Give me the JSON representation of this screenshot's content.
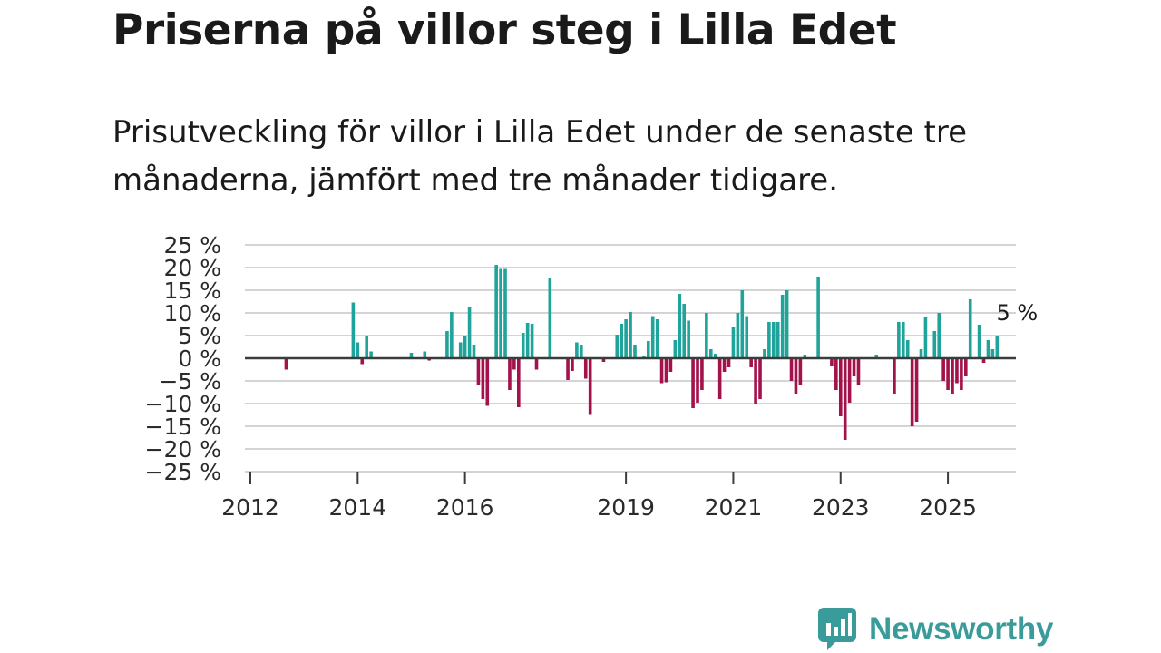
{
  "title": "Priserna på villor steg i Lilla Edet",
  "subtitle": "Prisutveckling för villor i Lilla Edet under de senaste tre månaderna, jämfört med tre månader tidigare.",
  "brand": {
    "name": "Newsworthy"
  },
  "colors": {
    "positive": "#1fa39a",
    "negative": "#a3124a",
    "grid": "#d4d4d4",
    "zero": "#3c3c3c",
    "brand": "#3a9c9a"
  },
  "chart_data": {
    "type": "bar",
    "ylim": [
      -25,
      25
    ],
    "yticks": [
      -25,
      -20,
      -15,
      -10,
      -5,
      0,
      5,
      10,
      15,
      20,
      25
    ],
    "ytick_labels": [
      "−25 %",
      "−20 %",
      "−15 %",
      "−10 %",
      "−5 %",
      "0 %",
      "5 %",
      "10 %",
      "15 %",
      "20 %",
      "25 %"
    ],
    "xticks": [
      2012,
      2014,
      2016,
      2019,
      2021,
      2023,
      2025
    ],
    "x_start_year": 2012,
    "annotation": "5 %",
    "bars": [
      {
        "m": 8,
        "v": -2.5
      },
      {
        "m": 23,
        "v": 12.3
      },
      {
        "m": 24,
        "v": 3.5
      },
      {
        "m": 25,
        "v": -1.3
      },
      {
        "m": 26,
        "v": 5.0
      },
      {
        "m": 27,
        "v": 1.5
      },
      {
        "m": 36,
        "v": 1.2
      },
      {
        "m": 39,
        "v": 1.5
      },
      {
        "m": 40,
        "v": -0.5
      },
      {
        "m": 44,
        "v": 6.0
      },
      {
        "m": 45,
        "v": 10.2
      },
      {
        "m": 47,
        "v": 3.5
      },
      {
        "m": 48,
        "v": 5.0
      },
      {
        "m": 49,
        "v": 11.3
      },
      {
        "m": 50,
        "v": 3.0
      },
      {
        "m": 51,
        "v": -6.0
      },
      {
        "m": 52,
        "v": -9.0
      },
      {
        "m": 53,
        "v": -10.5
      },
      {
        "m": 55,
        "v": 20.6
      },
      {
        "m": 56,
        "v": 19.7
      },
      {
        "m": 57,
        "v": 19.7
      },
      {
        "m": 58,
        "v": -7.0
      },
      {
        "m": 59,
        "v": -2.5
      },
      {
        "m": 60,
        "v": -10.8
      },
      {
        "m": 61,
        "v": 5.6
      },
      {
        "m": 62,
        "v": 7.8
      },
      {
        "m": 63,
        "v": 7.6
      },
      {
        "m": 64,
        "v": -2.5
      },
      {
        "m": 67,
        "v": 17.6
      },
      {
        "m": 71,
        "v": -4.8
      },
      {
        "m": 72,
        "v": -2.8
      },
      {
        "m": 73,
        "v": 3.5
      },
      {
        "m": 74,
        "v": 3.0
      },
      {
        "m": 75,
        "v": -4.5
      },
      {
        "m": 76,
        "v": -12.5
      },
      {
        "m": 79,
        "v": -0.8
      },
      {
        "m": 82,
        "v": 5.2
      },
      {
        "m": 83,
        "v": 7.6
      },
      {
        "m": 84,
        "v": 8.6
      },
      {
        "m": 85,
        "v": 10.2
      },
      {
        "m": 86,
        "v": 3.0
      },
      {
        "m": 88,
        "v": 0.6
      },
      {
        "m": 89,
        "v": 3.8
      },
      {
        "m": 90,
        "v": 9.3
      },
      {
        "m": 91,
        "v": 8.6
      },
      {
        "m": 92,
        "v": -5.5
      },
      {
        "m": 93,
        "v": -5.3
      },
      {
        "m": 94,
        "v": -3.0
      },
      {
        "m": 95,
        "v": 4.0
      },
      {
        "m": 96,
        "v": 14.2
      },
      {
        "m": 97,
        "v": 12.0
      },
      {
        "m": 98,
        "v": 8.3
      },
      {
        "m": 99,
        "v": -11.0
      },
      {
        "m": 100,
        "v": -9.8
      },
      {
        "m": 101,
        "v": -7.0
      },
      {
        "m": 102,
        "v": 10.0
      },
      {
        "m": 103,
        "v": 2.0
      },
      {
        "m": 104,
        "v": 1.0
      },
      {
        "m": 105,
        "v": -9.0
      },
      {
        "m": 106,
        "v": -3.0
      },
      {
        "m": 107,
        "v": -2.0
      },
      {
        "m": 108,
        "v": 7.0
      },
      {
        "m": 109,
        "v": 10.0
      },
      {
        "m": 110,
        "v": 15.0
      },
      {
        "m": 111,
        "v": 9.3
      },
      {
        "m": 112,
        "v": -2.0
      },
      {
        "m": 113,
        "v": -10.0
      },
      {
        "m": 114,
        "v": -9.0
      },
      {
        "m": 115,
        "v": 2.0
      },
      {
        "m": 116,
        "v": 8.0
      },
      {
        "m": 117,
        "v": 8.0
      },
      {
        "m": 118,
        "v": 8.0
      },
      {
        "m": 119,
        "v": 14.0
      },
      {
        "m": 120,
        "v": 15.0
      },
      {
        "m": 121,
        "v": -5.0
      },
      {
        "m": 122,
        "v": -7.8
      },
      {
        "m": 123,
        "v": -6.0
      },
      {
        "m": 124,
        "v": 0.8
      },
      {
        "m": 127,
        "v": 18.0
      },
      {
        "m": 130,
        "v": -1.8
      },
      {
        "m": 131,
        "v": -7.0
      },
      {
        "m": 132,
        "v": -12.8
      },
      {
        "m": 133,
        "v": -18.0
      },
      {
        "m": 134,
        "v": -9.8
      },
      {
        "m": 135,
        "v": -4.0
      },
      {
        "m": 136,
        "v": -6.0
      },
      {
        "m": 140,
        "v": 0.8
      },
      {
        "m": 144,
        "v": -7.8
      },
      {
        "m": 145,
        "v": 8.0
      },
      {
        "m": 146,
        "v": 8.0
      },
      {
        "m": 147,
        "v": 4.0
      },
      {
        "m": 148,
        "v": -15.0
      },
      {
        "m": 149,
        "v": -14.0
      },
      {
        "m": 150,
        "v": 2.0
      },
      {
        "m": 151,
        "v": 9.0
      },
      {
        "m": 153,
        "v": 6.0
      },
      {
        "m": 154,
        "v": 10.0
      },
      {
        "m": 155,
        "v": -5.0
      },
      {
        "m": 156,
        "v": -7.0
      },
      {
        "m": 157,
        "v": -7.8
      },
      {
        "m": 158,
        "v": -5.5
      },
      {
        "m": 159,
        "v": -7.0
      },
      {
        "m": 160,
        "v": -4.0
      },
      {
        "m": 161,
        "v": 13.0
      },
      {
        "m": 163,
        "v": 7.4
      },
      {
        "m": 164,
        "v": -1.0
      },
      {
        "m": 165,
        "v": 4.0
      },
      {
        "m": 166,
        "v": 2.0
      },
      {
        "m": 167,
        "v": 5.0
      }
    ]
  }
}
